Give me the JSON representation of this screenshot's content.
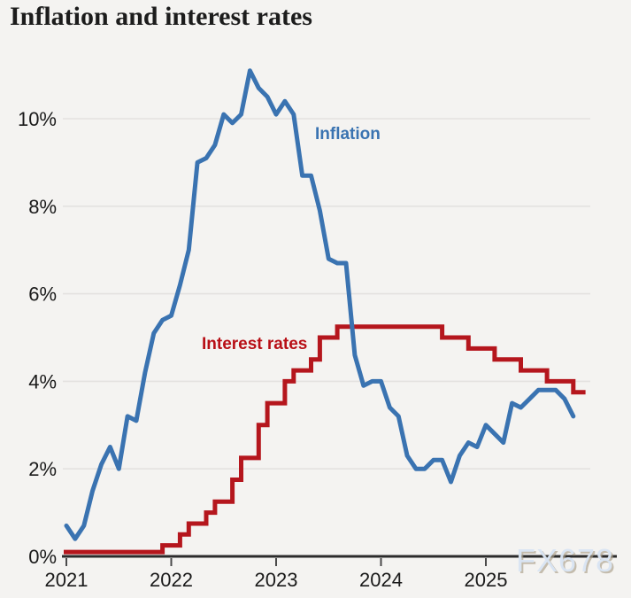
{
  "header": {
    "title": "Inflation and interest rates"
  },
  "watermark": {
    "text": "FX678"
  },
  "chart_data": {
    "type": "line",
    "title": "Inflation and interest rates",
    "x_start": "2021-01",
    "x_ticks": [
      {
        "label": "2021",
        "month": 0
      },
      {
        "label": "2022",
        "month": 12
      },
      {
        "label": "2023",
        "month": 24
      },
      {
        "label": "2024",
        "month": 36
      },
      {
        "label": "2025",
        "month": 48
      }
    ],
    "y_ticks": [
      {
        "label": "0%",
        "value": 0
      },
      {
        "label": "2%",
        "value": 2
      },
      {
        "label": "4%",
        "value": 4
      },
      {
        "label": "6%",
        "value": 6
      },
      {
        "label": "8%",
        "value": 8
      },
      {
        "label": "10%",
        "value": 10
      }
    ],
    "ylim": [
      0,
      11.6
    ],
    "grid": "horizontal",
    "colors": {
      "inflation": "#3a73b1",
      "interest_rates": "#b5161d",
      "grid": "#e3e2e0",
      "axis": "#2b2b2b",
      "background": "#f4f3f1"
    },
    "series": [
      {
        "name": "Inflation",
        "type": "line",
        "unit": "%",
        "color": "#3a73b1",
        "start_month": 0,
        "values": [
          0.7,
          0.4,
          0.7,
          1.5,
          2.1,
          2.5,
          2.0,
          3.2,
          3.1,
          4.2,
          5.1,
          5.4,
          5.5,
          6.2,
          7.0,
          9.0,
          9.1,
          9.4,
          10.1,
          9.9,
          10.1,
          11.1,
          10.7,
          10.5,
          10.1,
          10.4,
          10.1,
          8.7,
          8.7,
          7.9,
          6.8,
          6.7,
          6.7,
          4.6,
          3.9,
          4.0,
          4.0,
          3.4,
          3.2,
          2.3,
          2.0,
          2.0,
          2.2,
          2.2,
          1.7,
          2.3,
          2.6,
          2.5,
          3.0,
          2.8,
          2.6,
          3.5,
          3.4,
          3.6,
          3.8,
          3.8,
          3.8,
          3.6,
          3.2
        ]
      },
      {
        "name": "Interest rates",
        "type": "step",
        "unit": "%",
        "color": "#b5161d",
        "end_month": 59.4,
        "steps": [
          [
            -0.3,
            0.1
          ],
          [
            11,
            0.25
          ],
          [
            13,
            0.5
          ],
          [
            14,
            0.75
          ],
          [
            16,
            1.0
          ],
          [
            17,
            1.25
          ],
          [
            19,
            1.75
          ],
          [
            20,
            2.25
          ],
          [
            22,
            3.0
          ],
          [
            23,
            3.5
          ],
          [
            25,
            4.0
          ],
          [
            26,
            4.25
          ],
          [
            28,
            4.5
          ],
          [
            29,
            5.0
          ],
          [
            31,
            5.25
          ],
          [
            43,
            5.0
          ],
          [
            46,
            4.75
          ],
          [
            49,
            4.5
          ],
          [
            52,
            4.25
          ],
          [
            55,
            4.0
          ],
          [
            58,
            3.75
          ]
        ]
      }
    ],
    "series_labels": [
      {
        "text": "Inflation"
      },
      {
        "text": "Interest rates"
      }
    ],
    "legend_position": "inline-annotations"
  }
}
